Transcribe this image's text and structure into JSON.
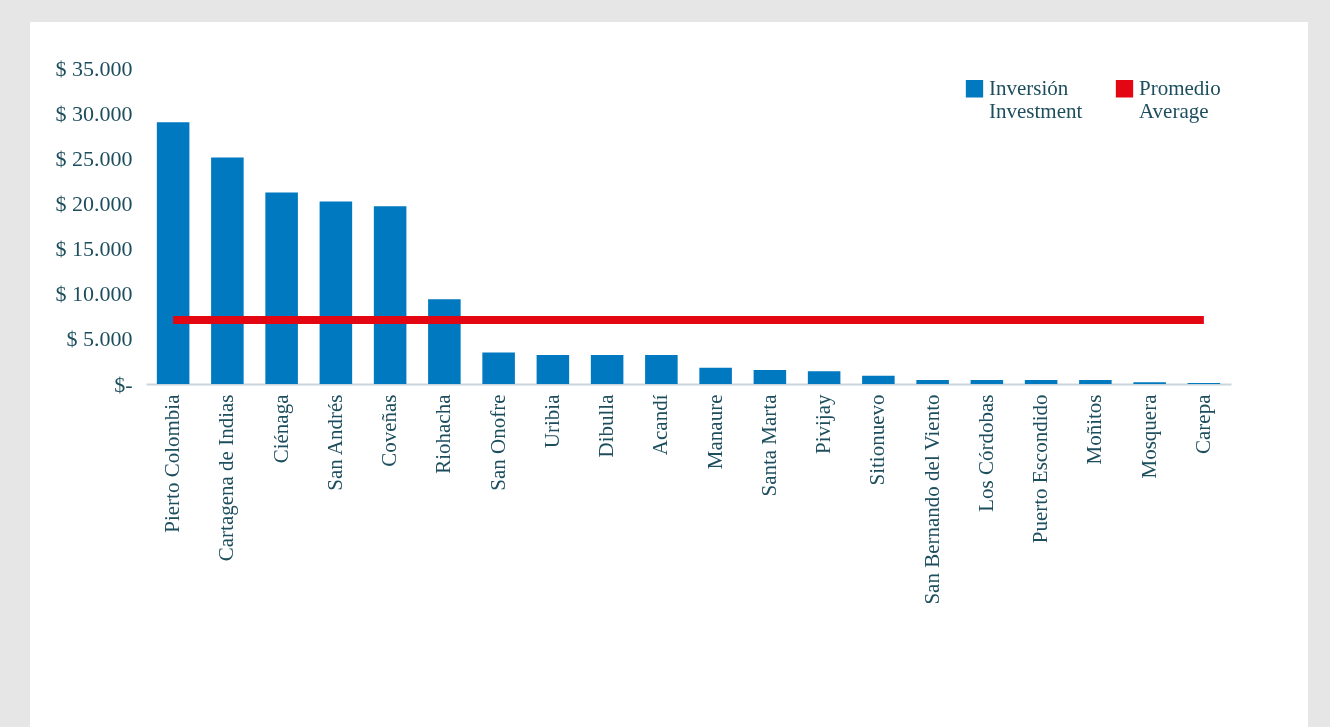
{
  "chart_data": {
    "type": "bar",
    "categories": [
      "Pierto Colombia",
      "Cartagena de Indias",
      "Ciénaga",
      "San Andrés",
      "Coveñas",
      "Riohacha",
      "San Onofre",
      "Uribia",
      "Dibulla",
      "Acandí",
      "Manaure",
      "Santa Marta",
      "Pivijay",
      "Sitionuevo",
      "San Bernando del Viento",
      "Los Córdobas",
      "Puerto Escondido",
      "Moñitos",
      "Mosquera",
      "Carepa"
    ],
    "series": [
      {
        "name": "Inversión\nInvestment",
        "color": "#0079c1",
        "values": [
          29000,
          25100,
          21200,
          20200,
          19700,
          9400,
          3500,
          3200,
          3200,
          3200,
          1800,
          1550,
          1400,
          900,
          450,
          450,
          450,
          450,
          200,
          100
        ]
      },
      {
        "name": "Promedio\nAverage",
        "type": "line",
        "color": "#e30613",
        "line_style": "solid",
        "marker": "none",
        "values": [
          7100,
          7100,
          7100,
          7100,
          7100,
          7100,
          7100,
          7100,
          7100,
          7100,
          7100,
          7100,
          7100,
          7100,
          7100,
          7100,
          7100,
          7100,
          7100,
          7100
        ]
      }
    ],
    "ylim": [
      0,
      35000
    ],
    "yticks": [
      {
        "value": 0,
        "label": "$-"
      },
      {
        "value": 5000,
        "label": "$   5.000"
      },
      {
        "value": 10000,
        "label": "$ 10.000"
      },
      {
        "value": 15000,
        "label": "$ 15.000"
      },
      {
        "value": 20000,
        "label": "$ 20.000"
      },
      {
        "value": 25000,
        "label": "$ 25.000"
      },
      {
        "value": 30000,
        "label": "$ 30.000"
      },
      {
        "value": 35000,
        "label": "$ 35.000"
      }
    ],
    "grid": false,
    "legend": "top right"
  }
}
